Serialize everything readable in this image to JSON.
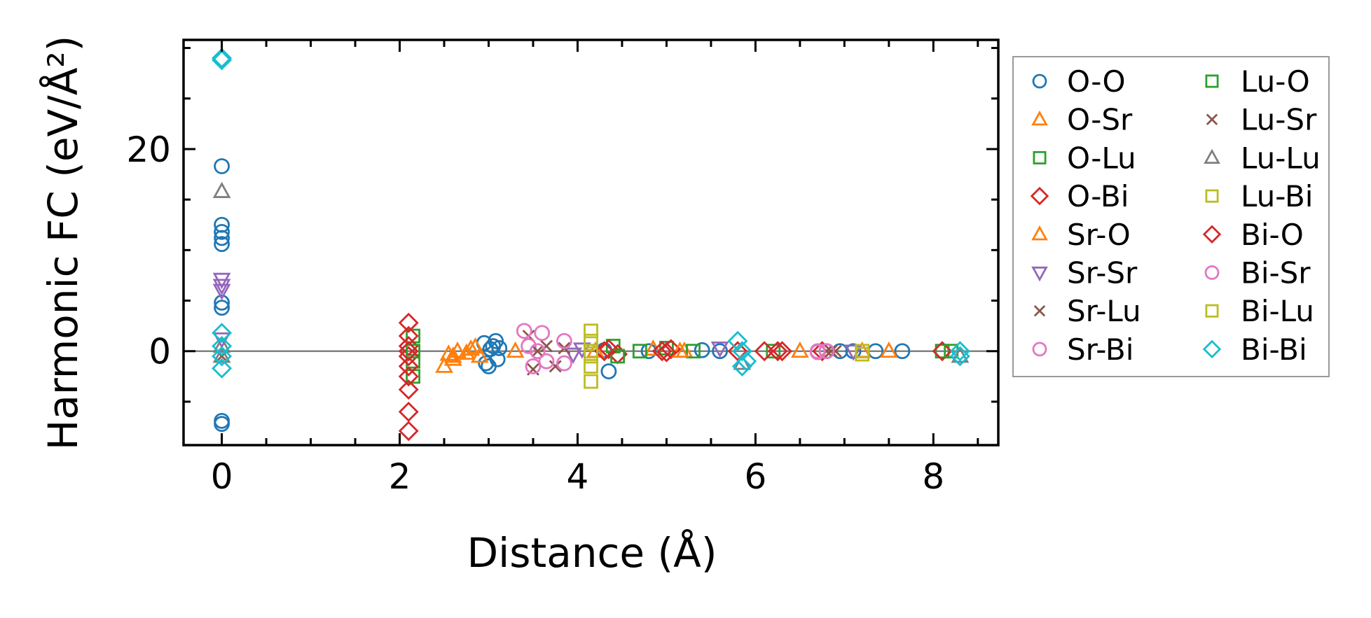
{
  "chart_data": {
    "type": "scatter",
    "title": "",
    "xlabel": "Distance (Å)",
    "ylabel": "Harmonic FC (eV/Å²)",
    "xlim": [
      -0.43,
      8.73
    ],
    "ylim": [
      -9.3,
      30.8
    ],
    "xticks": [
      0,
      2,
      4,
      6,
      8
    ],
    "xtick_labels": [
      "0",
      "2",
      "4",
      "6",
      "8"
    ],
    "xminor_step": 0.5,
    "yticks": [
      0,
      20
    ],
    "ytick_labels": [
      "0",
      "20"
    ],
    "yminor_step": 5,
    "grid": false,
    "zero_line": true,
    "legend_placement": "outside-right",
    "series": [
      {
        "name": "O-O",
        "marker": "circle",
        "color": "#1f77b4",
        "points": [
          [
            0,
            18.3
          ],
          [
            0,
            12.5
          ],
          [
            0,
            11.8
          ],
          [
            0,
            11.2
          ],
          [
            0,
            10.6
          ],
          [
            0,
            4.8
          ],
          [
            0,
            4.3
          ],
          [
            0,
            -6.9
          ],
          [
            0,
            -7.2
          ],
          [
            2.95,
            0.8
          ],
          [
            3.0,
            -1.5
          ],
          [
            3.05,
            0.5
          ],
          [
            3.1,
            -0.8
          ],
          [
            3.02,
            0.2
          ],
          [
            2.97,
            -1.2
          ],
          [
            3.08,
            1.0
          ],
          [
            3.12,
            0.3
          ],
          [
            4.35,
            -2.0
          ],
          [
            4.3,
            0.1
          ],
          [
            4.8,
            0
          ],
          [
            5.4,
            0.1
          ],
          [
            5.6,
            0
          ],
          [
            6.8,
            0
          ],
          [
            6.95,
            0
          ],
          [
            7.1,
            0
          ],
          [
            7.35,
            0
          ],
          [
            7.65,
            0
          ]
        ]
      },
      {
        "name": "O-Sr",
        "marker": "triangle-up",
        "color": "#ff7f0e",
        "points": [
          [
            2.5,
            -1.5
          ],
          [
            2.55,
            -0.3
          ],
          [
            2.65,
            0
          ],
          [
            2.8,
            0.2
          ],
          [
            2.9,
            -0.5
          ],
          [
            2.85,
            0.4
          ],
          [
            2.6,
            -0.8
          ],
          [
            4.85,
            0.2
          ],
          [
            5.2,
            0
          ],
          [
            6.5,
            0
          ],
          [
            7.2,
            0
          ],
          [
            7.5,
            0
          ]
        ]
      },
      {
        "name": "O-Lu",
        "marker": "square",
        "color": "#2ca02c",
        "points": [
          [
            2.15,
            1.5
          ],
          [
            2.15,
            -1
          ],
          [
            2.15,
            -2.5
          ],
          [
            4.4,
            0.5
          ],
          [
            4.7,
            0
          ],
          [
            5.0,
            0.3
          ],
          [
            5.3,
            0
          ],
          [
            6.2,
            0
          ],
          [
            8.1,
            0
          ]
        ]
      },
      {
        "name": "O-Bi",
        "marker": "diamond",
        "color": "#d62728",
        "points": [
          [
            2.1,
            2.8
          ],
          [
            2.1,
            1.5
          ],
          [
            2.1,
            0.5
          ],
          [
            2.1,
            -0.5
          ],
          [
            2.1,
            -1.5
          ],
          [
            2.1,
            -2.5
          ],
          [
            2.1,
            -3.8
          ],
          [
            2.1,
            -6.0
          ],
          [
            2.1,
            -7.9
          ],
          [
            4.35,
            0.2
          ],
          [
            4.45,
            -0.3
          ],
          [
            4.95,
            0
          ],
          [
            5.05,
            0.2
          ],
          [
            5.8,
            0
          ],
          [
            6.1,
            0
          ],
          [
            6.3,
            0
          ],
          [
            6.75,
            0
          ],
          [
            8.1,
            0
          ]
        ]
      },
      {
        "name": "Sr-O",
        "marker": "triangle-up",
        "color": "#ff7f0e",
        "points": [
          [
            2.6,
            -0.5
          ],
          [
            2.75,
            -0.2
          ],
          [
            3.3,
            0
          ],
          [
            4.2,
            0
          ],
          [
            5.15,
            0
          ]
        ]
      },
      {
        "name": "Sr-Sr",
        "marker": "triangle-down",
        "color": "#9467bd",
        "points": [
          [
            0,
            7.1
          ],
          [
            0,
            6.5
          ],
          [
            0,
            6.0
          ],
          [
            0,
            1.2
          ],
          [
            3.95,
            -0.3
          ],
          [
            4.05,
            0.2
          ],
          [
            5.6,
            0.3
          ],
          [
            7.1,
            0
          ]
        ]
      },
      {
        "name": "Sr-Lu",
        "marker": "x",
        "color": "#8c564b",
        "points": [
          [
            3.45,
            1.5
          ],
          [
            3.5,
            -1.8
          ],
          [
            3.65,
            0.5
          ],
          [
            3.75,
            -1.5
          ],
          [
            3.85,
            0.3
          ],
          [
            6.8,
            0
          ],
          [
            6.9,
            0
          ]
        ]
      },
      {
        "name": "Sr-Bi",
        "marker": "circle",
        "color": "#e377c2",
        "points": [
          [
            3.4,
            2.0
          ],
          [
            3.45,
            0.5
          ],
          [
            3.5,
            -1.5
          ],
          [
            3.6,
            1.8
          ],
          [
            3.65,
            -1.0
          ],
          [
            3.85,
            1.0
          ],
          [
            3.85,
            -1.2
          ],
          [
            6.7,
            0
          ]
        ]
      },
      {
        "name": "Lu-O",
        "marker": "square",
        "color": "#2ca02c",
        "points": [
          [
            2.15,
            0
          ],
          [
            4.45,
            -0.5
          ],
          [
            8.2,
            0
          ]
        ]
      },
      {
        "name": "Lu-Sr",
        "marker": "x",
        "color": "#8c564b",
        "points": [
          [
            0,
            -0.5
          ],
          [
            3.55,
            0
          ],
          [
            6.85,
            0
          ]
        ]
      },
      {
        "name": "Lu-Lu",
        "marker": "triangle-up",
        "color": "#7f7f7f",
        "points": [
          [
            0,
            15.8
          ],
          [
            0,
            0.5
          ],
          [
            0,
            -0.5
          ],
          [
            5.85,
            -1.2
          ],
          [
            8.3,
            -0.5
          ]
        ]
      },
      {
        "name": "Lu-Bi",
        "marker": "square",
        "color": "#bcbd22",
        "points": [
          [
            4.15,
            2.0
          ],
          [
            4.15,
            1.0
          ],
          [
            4.15,
            -0.5
          ],
          [
            4.15,
            -1.5
          ],
          [
            4.15,
            -3.0
          ],
          [
            7.2,
            -0.3
          ]
        ]
      },
      {
        "name": "Bi-O",
        "marker": "diamond",
        "color": "#d62728",
        "points": [
          [
            2.1,
            0
          ],
          [
            4.3,
            0
          ],
          [
            5.0,
            -0.1
          ],
          [
            6.25,
            0
          ]
        ]
      },
      {
        "name": "Bi-Sr",
        "marker": "circle",
        "color": "#e377c2",
        "points": [
          [
            3.55,
            0
          ],
          [
            6.7,
            -0.1
          ],
          [
            6.8,
            0
          ]
        ]
      },
      {
        "name": "Bi-Lu",
        "marker": "square",
        "color": "#bcbd22",
        "points": [
          [
            4.15,
            0
          ],
          [
            7.2,
            0
          ]
        ]
      },
      {
        "name": "Bi-Bi",
        "marker": "diamond",
        "color": "#17becf",
        "points": [
          [
            0,
            29.0
          ],
          [
            0,
            28.8
          ],
          [
            0,
            1.8
          ],
          [
            0,
            0.5
          ],
          [
            0,
            -0.5
          ],
          [
            0,
            -1.7
          ],
          [
            5.8,
            1.0
          ],
          [
            5.85,
            0
          ],
          [
            5.9,
            -1.0
          ],
          [
            5.85,
            -1.5
          ],
          [
            8.3,
            0
          ],
          [
            8.3,
            -0.5
          ]
        ]
      }
    ]
  }
}
